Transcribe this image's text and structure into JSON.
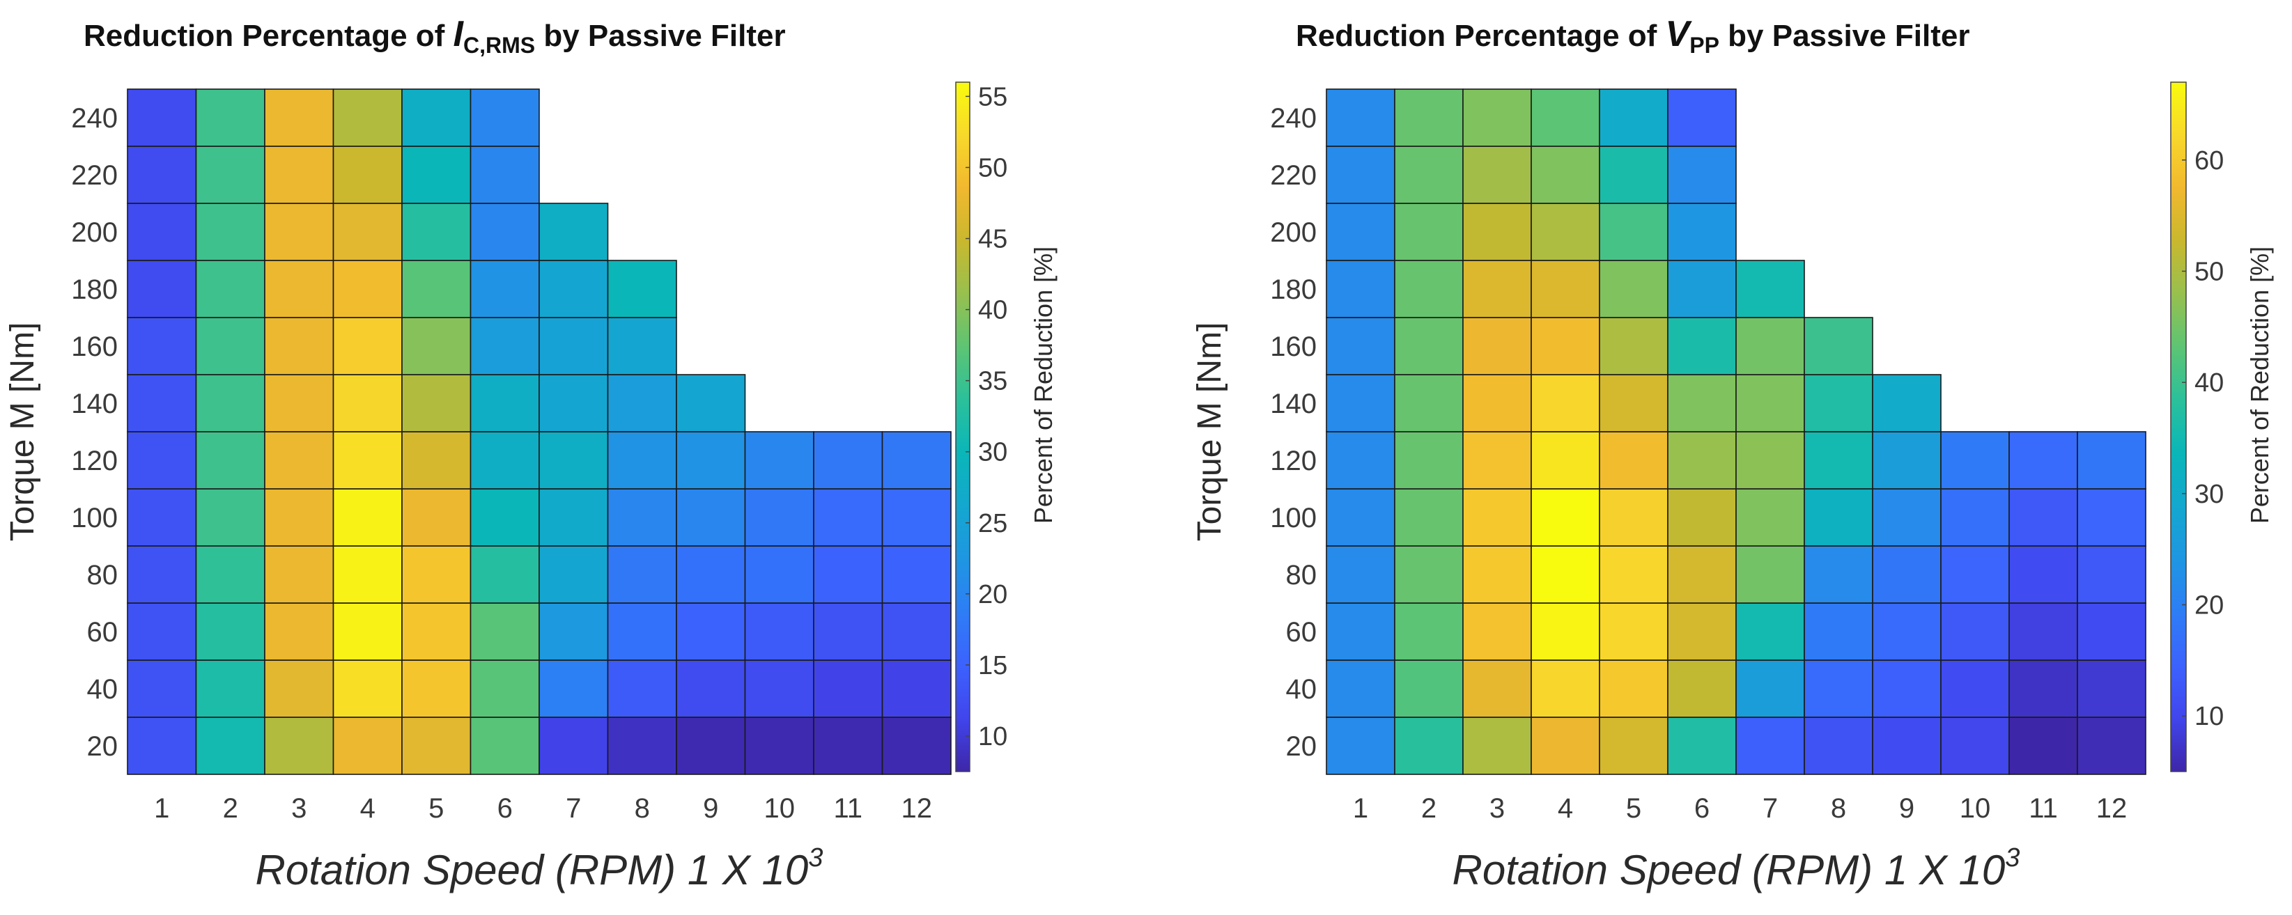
{
  "chart_data": [
    {
      "type": "heatmap",
      "title": {
        "prefix": "Reduction Percentage of ",
        "var": "I",
        "sub": "C,RMS",
        "suffix": " by Passive Filter"
      },
      "xlabel": {
        "text": "Rotation Speed (RPM) 1 X 10",
        "sup": "3"
      },
      "ylabel": "Torque M [Nm]",
      "colorbar_label": "Percent of Reduction [%]",
      "colorbar_ticks": [
        10,
        15,
        20,
        25,
        30,
        35,
        40,
        45,
        50,
        55
      ],
      "clim": [
        7.5,
        56
      ],
      "colormap": [
        "#3e26a8",
        "#4145ec",
        "#3c62fe",
        "#2e7df6",
        "#1f96e2",
        "#14a7cf",
        "#0ab6b9",
        "#2bc09b",
        "#5dc474",
        "#97c04f",
        "#c9b82e",
        "#f1b82f",
        "#f8d82b",
        "#f9fb0e"
      ],
      "x_ticks": [
        "1",
        "2",
        "3",
        "4",
        "5",
        "6",
        "7",
        "8",
        "9",
        "10",
        "11",
        "12"
      ],
      "y_ticks": [
        "20",
        "40",
        "60",
        "80",
        "100",
        "120",
        "140",
        "160",
        "180",
        "200",
        "220",
        "240"
      ],
      "values_by_speed": [
        [
          13,
          13,
          13,
          13,
          13,
          13,
          13,
          13,
          12,
          12,
          12,
          12
        ],
        [
          31,
          32,
          33,
          34,
          35,
          35,
          35,
          35,
          35,
          35,
          35,
          35
        ],
        [
          43,
          47,
          48,
          48,
          48,
          48,
          48,
          48,
          48,
          48,
          48,
          48
        ],
        [
          48,
          53,
          55,
          55,
          55,
          53,
          52,
          51,
          49,
          47,
          45,
          43
        ],
        [
          47,
          50,
          50,
          50,
          48,
          46,
          43,
          40,
          37,
          33,
          30,
          28
        ],
        [
          37,
          37,
          37,
          33,
          30,
          28,
          28,
          24,
          22,
          20,
          20,
          20
        ],
        [
          11,
          19,
          23,
          26,
          27,
          28,
          26,
          25,
          26,
          28
        ],
        [
          9,
          14,
          17,
          18,
          20,
          22,
          24,
          26,
          30
        ],
        [
          8,
          12,
          15,
          17,
          20,
          22,
          26
        ],
        [
          8,
          12,
          14,
          17,
          18,
          20
        ],
        [
          8,
          11,
          13,
          15,
          16,
          18
        ],
        [
          8,
          11,
          13,
          15,
          16,
          18
        ]
      ]
    },
    {
      "type": "heatmap",
      "title": {
        "prefix": "Reduction Percentage of ",
        "var": "V",
        "sub": "PP",
        "suffix": " by Passive Filter"
      },
      "xlabel": {
        "text": "Rotation Speed (RPM) 1 X 10",
        "sup": "3"
      },
      "ylabel": "Torque M [Nm]",
      "colorbar_label": "Percent of Reduction [%]",
      "colorbar_ticks": [
        10,
        20,
        30,
        40,
        50,
        60
      ],
      "clim": [
        5,
        67
      ],
      "colormap": [
        "#3e26a8",
        "#4145ec",
        "#3c62fe",
        "#2e7df6",
        "#1f96e2",
        "#14a7cf",
        "#0ab6b9",
        "#2bc09b",
        "#5dc474",
        "#97c04f",
        "#c9b82e",
        "#f1b82f",
        "#f8d82b",
        "#f9fb0e"
      ],
      "x_ticks": [
        "1",
        "2",
        "3",
        "4",
        "5",
        "6",
        "7",
        "8",
        "9",
        "10",
        "11",
        "12"
      ],
      "y_ticks": [
        "20",
        "40",
        "60",
        "80",
        "100",
        "120",
        "140",
        "160",
        "180",
        "200",
        "220",
        "240"
      ],
      "values_by_speed": [
        [
          22,
          22,
          22,
          22,
          22,
          22,
          22,
          22,
          22,
          22,
          22,
          22
        ],
        [
          38,
          42,
          43,
          44,
          44,
          44,
          44,
          44,
          44,
          44,
          44,
          44
        ],
        [
          50,
          56,
          59,
          60,
          60,
          59,
          58,
          57,
          55,
          52,
          49,
          46
        ],
        [
          57,
          62,
          66,
          67,
          67,
          64,
          62,
          58,
          55,
          50,
          46,
          43
        ],
        [
          54,
          60,
          62,
          62,
          61,
          58,
          54,
          50,
          46,
          41,
          36,
          30
        ],
        [
          37,
          52,
          54,
          54,
          52,
          48,
          46,
          36,
          26,
          24,
          22,
          14
        ],
        [
          14,
          26,
          35,
          45,
          46,
          47,
          46,
          45,
          35
        ],
        [
          12,
          16,
          19,
          22,
          32,
          35,
          37,
          40
        ],
        [
          11,
          14,
          16,
          18,
          22,
          26,
          30
        ],
        [
          10,
          11,
          13,
          15,
          17,
          19
        ],
        [
          5,
          7,
          9,
          11,
          13,
          16
        ],
        [
          6,
          8,
          11,
          13,
          15,
          18
        ]
      ]
    }
  ]
}
